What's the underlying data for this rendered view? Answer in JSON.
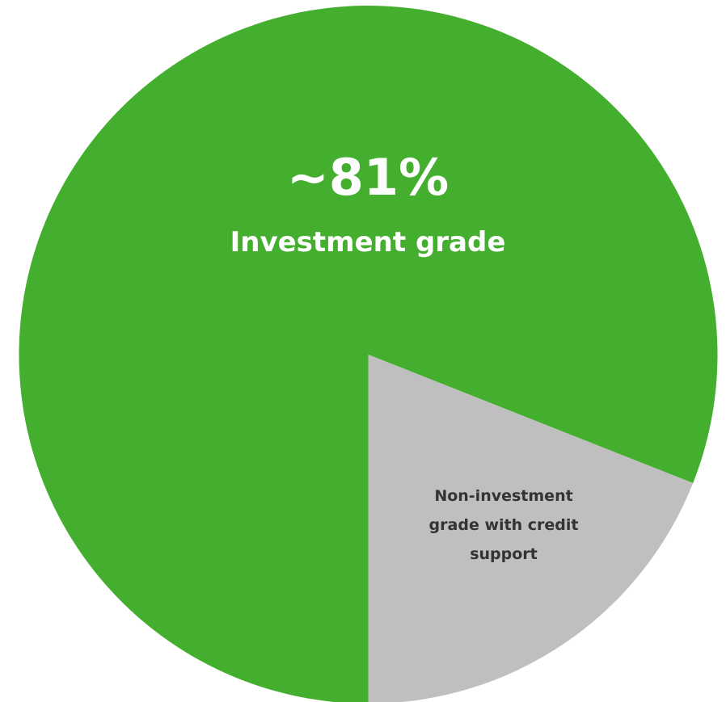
{
  "chart_data": {
    "type": "pie",
    "categories": [
      "Investment grade",
      "Non-investment grade with credit support"
    ],
    "values": [
      81,
      19
    ],
    "value_labels": [
      "~81%",
      null
    ],
    "colors": [
      "#44ae2e",
      "#bfbfbf"
    ],
    "start_angle": 180,
    "direction": "clockwise"
  }
}
